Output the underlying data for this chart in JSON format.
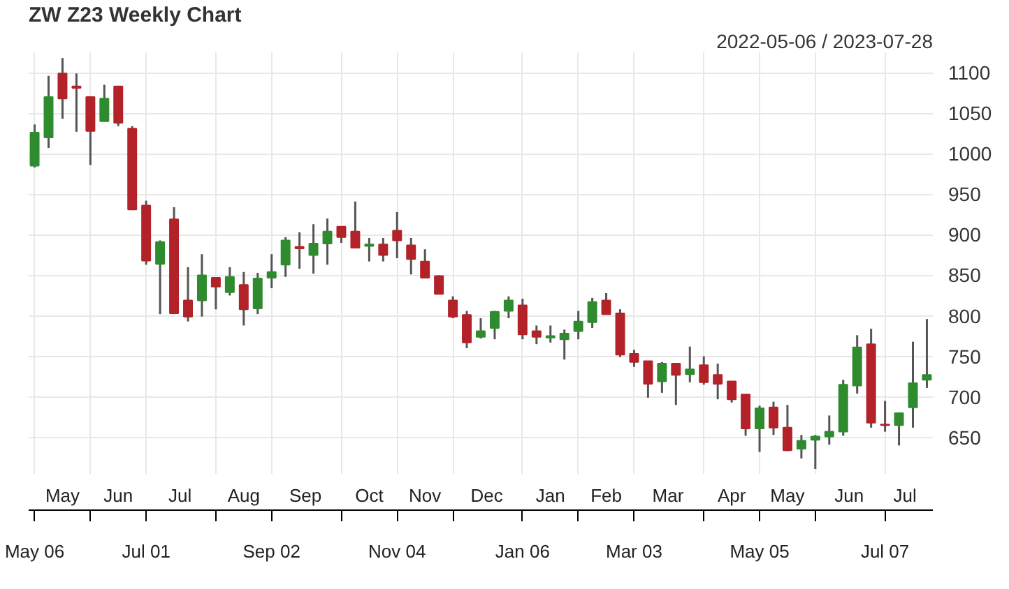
{
  "chart_data": {
    "type": "candlestick",
    "title": "ZW Z23 Weekly Chart",
    "subtitle": "2022-05-06 / 2023-07-28",
    "x": [
      "2022-05-06",
      "2022-05-13",
      "2022-05-20",
      "2022-05-27",
      "2022-06-03",
      "2022-06-10",
      "2022-06-17",
      "2022-06-24",
      "2022-07-01",
      "2022-07-08",
      "2022-07-15",
      "2022-07-22",
      "2022-07-29",
      "2022-08-05",
      "2022-08-12",
      "2022-08-19",
      "2022-08-26",
      "2022-09-02",
      "2022-09-09",
      "2022-09-16",
      "2022-09-23",
      "2022-09-30",
      "2022-10-07",
      "2022-10-14",
      "2022-10-21",
      "2022-10-28",
      "2022-11-04",
      "2022-11-11",
      "2022-11-18",
      "2022-11-25",
      "2022-12-02",
      "2022-12-09",
      "2022-12-16",
      "2022-12-23",
      "2022-12-30",
      "2023-01-06",
      "2023-01-13",
      "2023-01-20",
      "2023-01-27",
      "2023-02-03",
      "2023-02-10",
      "2023-02-17",
      "2023-02-24",
      "2023-03-03",
      "2023-03-10",
      "2023-03-17",
      "2023-03-24",
      "2023-03-31",
      "2023-04-07",
      "2023-04-14",
      "2023-04-21",
      "2023-04-28",
      "2023-05-05",
      "2023-05-12",
      "2023-05-19",
      "2023-05-26",
      "2023-06-02",
      "2023-06-09",
      "2023-06-16",
      "2023-06-23",
      "2023-06-30",
      "2023-07-07",
      "2023-07-14",
      "2023-07-21",
      "2023-07-28"
    ],
    "ohlc": [
      [
        985,
        1036,
        983,
        1026
      ],
      [
        1020,
        1096,
        1007,
        1070
      ],
      [
        1099,
        1118,
        1043,
        1068
      ],
      [
        1083,
        1099,
        1027,
        1081
      ],
      [
        1070,
        1070,
        986,
        1028
      ],
      [
        1040,
        1085,
        1040,
        1068
      ],
      [
        1083,
        1083,
        1034,
        1038
      ],
      [
        1031,
        1034,
        931,
        931
      ],
      [
        936,
        942,
        863,
        868
      ],
      [
        864,
        893,
        802,
        891
      ],
      [
        919,
        934,
        802,
        803
      ],
      [
        819,
        860,
        793,
        799
      ],
      [
        819,
        876,
        799,
        850
      ],
      [
        847,
        847,
        808,
        836
      ],
      [
        829,
        860,
        825,
        848
      ],
      [
        838,
        854,
        788,
        808
      ],
      [
        809,
        853,
        802,
        846
      ],
      [
        847,
        876,
        834,
        854
      ],
      [
        863,
        897,
        848,
        893
      ],
      [
        885,
        903,
        858,
        883
      ],
      [
        875,
        913,
        852,
        889
      ],
      [
        889,
        920,
        863,
        904
      ],
      [
        910,
        910,
        890,
        897
      ],
      [
        904,
        941,
        884,
        884
      ],
      [
        886,
        896,
        867,
        888
      ],
      [
        888,
        896,
        867,
        875
      ],
      [
        905,
        928,
        871,
        893
      ],
      [
        887,
        896,
        851,
        870
      ],
      [
        867,
        882,
        847,
        847
      ],
      [
        849,
        850,
        827,
        827
      ],
      [
        819,
        824,
        797,
        799
      ],
      [
        801,
        806,
        760,
        767
      ],
      [
        774,
        797,
        772,
        781
      ],
      [
        785,
        806,
        771,
        805
      ],
      [
        806,
        824,
        797,
        819
      ],
      [
        813,
        821,
        771,
        777
      ],
      [
        781,
        788,
        765,
        774
      ],
      [
        773,
        788,
        767,
        775
      ],
      [
        771,
        783,
        746,
        778
      ],
      [
        781,
        806,
        771,
        793
      ],
      [
        792,
        822,
        785,
        817
      ],
      [
        819,
        828,
        802,
        802
      ],
      [
        803,
        808,
        749,
        752
      ],
      [
        753,
        758,
        737,
        743
      ],
      [
        744,
        744,
        699,
        716
      ],
      [
        719,
        743,
        705,
        741
      ],
      [
        741,
        741,
        690,
        727
      ],
      [
        728,
        762,
        718,
        734
      ],
      [
        739,
        750,
        715,
        718
      ],
      [
        727,
        741,
        697,
        716
      ],
      [
        719,
        719,
        693,
        697
      ],
      [
        703,
        703,
        652,
        661
      ],
      [
        661,
        689,
        632,
        686
      ],
      [
        687,
        694,
        653,
        662
      ],
      [
        662,
        690,
        633,
        634
      ],
      [
        636,
        653,
        624,
        646
      ],
      [
        647,
        653,
        611,
        651
      ],
      [
        651,
        677,
        641,
        657
      ],
      [
        657,
        721,
        652,
        715
      ],
      [
        714,
        776,
        704,
        761
      ],
      [
        765,
        784,
        662,
        668
      ],
      [
        666,
        695,
        657,
        665
      ],
      [
        665,
        680,
        640,
        680
      ],
      [
        687,
        768,
        662,
        717
      ],
      [
        721,
        796,
        711,
        727
      ]
    ],
    "colors": [
      "#2e8b2e",
      "#2e8b2e",
      "#b22228",
      "#b22228",
      "#b22228",
      "#2e8b2e",
      "#b22228",
      "#b22228",
      "#b22228",
      "#2e8b2e",
      "#b22228",
      "#b22228",
      "#2e8b2e",
      "#b22228",
      "#2e8b2e",
      "#b22228",
      "#2e8b2e",
      "#2e8b2e",
      "#2e8b2e",
      "#b22228",
      "#2e8b2e",
      "#2e8b2e",
      "#b22228",
      "#b22228",
      "#2e8b2e",
      "#b22228",
      "#b22228",
      "#b22228",
      "#b22228",
      "#b22228",
      "#b22228",
      "#b22228",
      "#2e8b2e",
      "#2e8b2e",
      "#2e8b2e",
      "#b22228",
      "#b22228",
      "#2e8b2e",
      "#2e8b2e",
      "#2e8b2e",
      "#2e8b2e",
      "#b22228",
      "#b22228",
      "#b22228",
      "#b22228",
      "#2e8b2e",
      "#b22228",
      "#2e8b2e",
      "#b22228",
      "#b22228",
      "#b22228",
      "#b22228",
      "#2e8b2e",
      "#b22228",
      "#b22228",
      "#2e8b2e",
      "#2e8b2e",
      "#2e8b2e",
      "#2e8b2e",
      "#2e8b2e",
      "#b22228",
      "#b22228",
      "#2e8b2e",
      "#2e8b2e",
      "#2e8b2e"
    ],
    "xlim": [
      "2022-05-03",
      "2023-07-31"
    ],
    "xticks": [
      {
        "value": "2022-05-06",
        "label": "May 06"
      },
      {
        "value": "2022-06-03",
        "label": null
      },
      {
        "value": "2022-07-01",
        "label": "Jul 01"
      },
      {
        "value": "2022-08-05",
        "label": null
      },
      {
        "value": "2022-09-02",
        "label": "Sep 02"
      },
      {
        "value": "2022-10-07",
        "label": null
      },
      {
        "value": "2022-11-04",
        "label": "Nov 04"
      },
      {
        "value": "2022-12-02",
        "label": null
      },
      {
        "value": "2023-01-06",
        "label": "Jan 06"
      },
      {
        "value": "2023-02-03",
        "label": null
      },
      {
        "value": "2023-03-03",
        "label": "Mar 03"
      },
      {
        "value": "2023-04-07",
        "label": null
      },
      {
        "value": "2023-05-05",
        "label": "May 05"
      },
      {
        "value": "2023-06-02",
        "label": null
      },
      {
        "value": "2023-07-07",
        "label": "Jul 07"
      }
    ],
    "x2lim": [
      "2022-05-03",
      "2023-07-31"
    ],
    "x2ticks": [
      {
        "value": "2022-05-20",
        "label": "May"
      },
      {
        "value": "2022-06-17",
        "label": "Jun"
      },
      {
        "value": "2022-07-18",
        "label": "Jul"
      },
      {
        "value": "2022-08-19",
        "label": "Aug"
      },
      {
        "value": "2022-09-19",
        "label": "Sep"
      },
      {
        "value": "2022-10-21",
        "label": "Oct"
      },
      {
        "value": "2022-11-18",
        "label": "Nov"
      },
      {
        "value": "2022-12-19",
        "label": "Dec"
      },
      {
        "value": "2023-01-20",
        "label": "Jan"
      },
      {
        "value": "2023-02-17",
        "label": "Feb"
      },
      {
        "value": "2023-03-20",
        "label": "Mar"
      },
      {
        "value": "2023-04-21",
        "label": "Apr"
      },
      {
        "value": "2023-05-19",
        "label": "May"
      },
      {
        "value": "2023-06-19",
        "label": "Jun"
      },
      {
        "value": "2023-07-17",
        "label": "Jul"
      }
    ],
    "ylim": [
      605,
      1125
    ],
    "yticks": [
      650,
      700,
      750,
      800,
      850,
      900,
      950,
      1000,
      1050,
      1100
    ],
    "grid": true
  }
}
